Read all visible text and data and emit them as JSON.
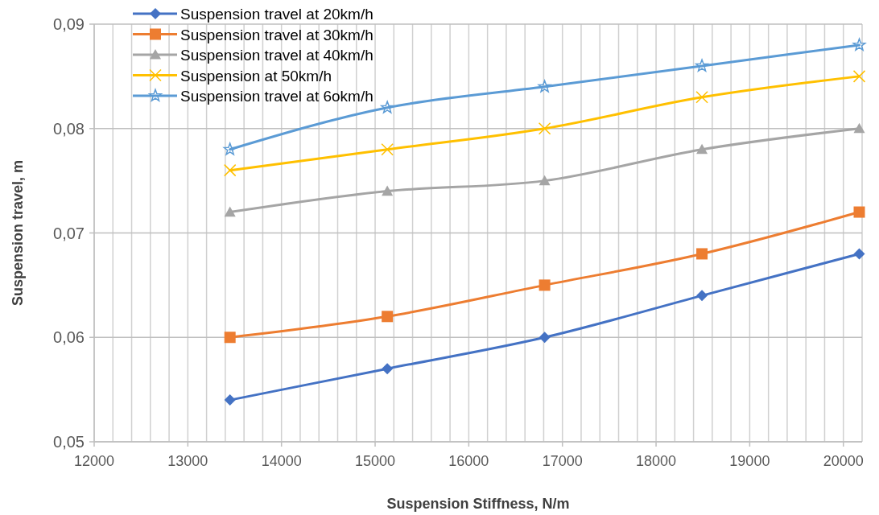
{
  "chart_data": {
    "type": "line",
    "xlabel": "Suspension Stiffness, N/m",
    "ylabel": "Suspension travel, m",
    "x": [
      13450,
      15130,
      16810,
      18490,
      20170
    ],
    "xlim": [
      12000,
      20200
    ],
    "xticks": [
      12000,
      {
        "value": 12200,
        "label": null
      },
      {
        "value": 12400,
        "label": null
      },
      {
        "value": 12600,
        "label": null
      },
      {
        "value": 12800,
        "label": null
      },
      13000,
      {
        "value": 13200,
        "label": null
      },
      {
        "value": 13400,
        "label": null
      },
      {
        "value": 13600,
        "label": null
      },
      {
        "value": 13800,
        "label": null
      },
      14000,
      {
        "value": 14200,
        "label": null
      },
      {
        "value": 14400,
        "label": null
      },
      {
        "value": 14600,
        "label": null
      },
      {
        "value": 14800,
        "label": null
      },
      15000,
      {
        "value": 15200,
        "label": null
      },
      {
        "value": 15400,
        "label": null
      },
      {
        "value": 15600,
        "label": null
      },
      {
        "value": 15800,
        "label": null
      },
      16000,
      {
        "value": 16200,
        "label": null
      },
      {
        "value": 16400,
        "label": null
      },
      {
        "value": 16600,
        "label": null
      },
      {
        "value": 16800,
        "label": null
      },
      17000,
      {
        "value": 17200,
        "label": null
      },
      {
        "value": 17400,
        "label": null
      },
      {
        "value": 17600,
        "label": null
      },
      {
        "value": 17800,
        "label": null
      },
      18000,
      {
        "value": 18200,
        "label": null
      },
      {
        "value": 18400,
        "label": null
      },
      {
        "value": 18600,
        "label": null
      },
      {
        "value": 18800,
        "label": null
      },
      19000,
      {
        "value": 19200,
        "label": null
      },
      {
        "value": 19400,
        "label": null
      },
      {
        "value": 19600,
        "label": null
      },
      {
        "value": 19800,
        "label": null
      },
      20000,
      {
        "value": 20200,
        "label": null
      }
    ],
    "ylim": [
      0.05,
      0.09
    ],
    "yticks": [
      {
        "value": 0.05,
        "label": "0,05"
      },
      {
        "value": 0.06,
        "label": "0,06"
      },
      {
        "value": 0.07,
        "label": "0,07"
      },
      {
        "value": 0.08,
        "label": "0,08"
      },
      {
        "value": 0.09,
        "label": "0,09"
      }
    ],
    "grid": true,
    "legend": "top left",
    "line_style": "solid",
    "series": [
      {
        "name": "Suspension travel at 20km/h",
        "color": "#4472c4",
        "marker": "diamond",
        "values": [
          0.054,
          0.057,
          0.06,
          0.064,
          0.068
        ]
      },
      {
        "name": "Suspension travel at 30km/h",
        "color": "#ed7d31",
        "marker": "square",
        "values": [
          0.06,
          0.062,
          0.065,
          0.068,
          0.072
        ]
      },
      {
        "name": "Suspension travel at 40km/h",
        "color": "#a5a5a5",
        "marker": "triangle",
        "values": [
          0.072,
          0.074,
          0.075,
          0.078,
          0.08
        ]
      },
      {
        "name": "Suspension at 50km/h",
        "color": "#ffc000",
        "marker": "cross",
        "values": [
          0.076,
          0.078,
          0.08,
          0.083,
          0.085
        ]
      },
      {
        "name": "Suspension travel at 6okm/h",
        "color": "#5b9bd5",
        "marker": "star",
        "values": [
          0.078,
          0.082,
          0.084,
          0.086,
          0.088
        ]
      }
    ]
  }
}
